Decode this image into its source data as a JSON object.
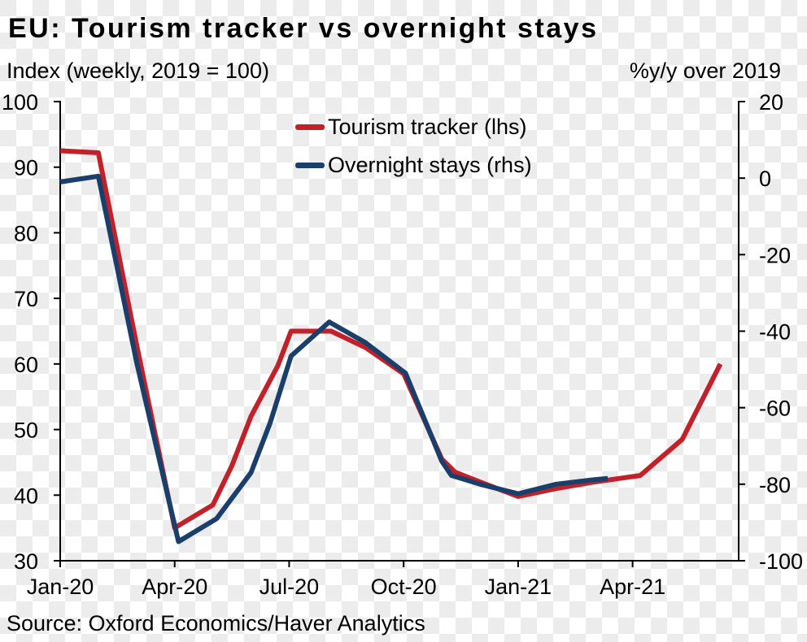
{
  "chart_data": {
    "type": "line",
    "title": "EU: Tourism tracker vs overnight stays",
    "left_axis_label": "Index (weekly, 2019 = 100)",
    "right_axis_label": "%y/y over 2019",
    "source": "Source: Oxford Economics/Haver Analytics",
    "grid": false,
    "legend_position": "top-center",
    "x_axis": {
      "unit": "months-since-Jan-2020",
      "range_months": [
        0,
        17.78
      ],
      "ticks": [
        {
          "label": "Jan-20",
          "m": 0
        },
        {
          "label": "Apr-20",
          "m": 3
        },
        {
          "label": "Jul-20",
          "m": 6
        },
        {
          "label": "Oct-20",
          "m": 9
        },
        {
          "label": "Jan-21",
          "m": 12
        },
        {
          "label": "Apr-21",
          "m": 15
        }
      ]
    },
    "left_axis": {
      "range": [
        30,
        100
      ],
      "ticks": [
        30,
        40,
        50,
        60,
        70,
        80,
        90,
        100
      ]
    },
    "right_axis": {
      "range": [
        -100,
        20
      ],
      "ticks": [
        -100,
        -80,
        -60,
        -40,
        -20,
        0,
        20
      ]
    },
    "series": [
      {
        "name": "Tourism tracker (lhs)",
        "axis": "left",
        "color": "#c2212a",
        "points": [
          [
            0,
            92.5
          ],
          [
            1,
            92.2
          ],
          [
            2,
            63
          ],
          [
            3,
            35
          ],
          [
            4,
            38.5
          ],
          [
            4.5,
            44.5
          ],
          [
            5,
            52
          ],
          [
            5.7,
            59.7
          ],
          [
            6.05,
            65
          ],
          [
            7.1,
            65
          ],
          [
            8,
            62.5
          ],
          [
            9,
            58.5
          ],
          [
            10,
            45.5
          ],
          [
            10.35,
            43.5
          ],
          [
            11,
            42
          ],
          [
            12,
            39.8
          ],
          [
            13,
            41
          ],
          [
            14,
            42
          ],
          [
            15.2,
            43
          ],
          [
            16.3,
            48.5
          ],
          [
            17.3,
            60
          ]
        ]
      },
      {
        "name": "Overnight stays (rhs)",
        "axis": "right",
        "color": "#1b3f6b",
        "points": [
          [
            0,
            -1
          ],
          [
            1,
            0.5
          ],
          [
            2,
            -48
          ],
          [
            3.1,
            -95
          ],
          [
            4.1,
            -89
          ],
          [
            5,
            -77
          ],
          [
            5.5,
            -64
          ],
          [
            6.05,
            -46.5
          ],
          [
            7.05,
            -37.6
          ],
          [
            8,
            -43
          ],
          [
            9.05,
            -51
          ],
          [
            10,
            -74
          ],
          [
            10.25,
            -77.7
          ],
          [
            11,
            -80
          ],
          [
            12,
            -82.5
          ],
          [
            13,
            -80
          ],
          [
            14,
            -78.8
          ],
          [
            14.35,
            -78.5
          ]
        ]
      }
    ]
  }
}
